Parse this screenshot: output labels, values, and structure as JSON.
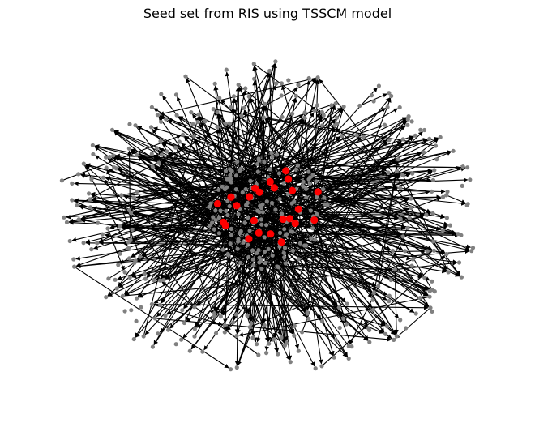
{
  "figure": {
    "title": "Seed set from RIS using TSSCM model"
  },
  "graph": {
    "directed": true,
    "background_color": "#ffffff",
    "node_color": "#808080",
    "seed_node_color": "#ff0000",
    "edge_color": "#000000",
    "outer_node_count": 300,
    "core_node_count": 160,
    "seed_node_count": 24,
    "edge_count": 560
  }
}
